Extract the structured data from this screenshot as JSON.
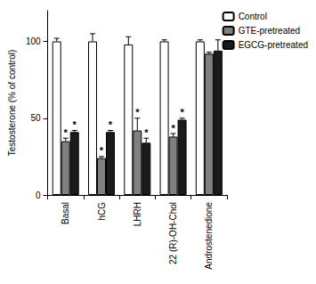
{
  "chart_data": {
    "type": "bar",
    "categories": [
      "Basal",
      "hCG",
      "LHRH",
      "22 (R)-OH-Chol",
      "Androstenedione"
    ],
    "ylabel": "Testosterone (% of control)",
    "ylim": [
      0,
      120
    ],
    "yticks": [
      0,
      50,
      100
    ],
    "grid": false,
    "legend": "upper right",
    "series": [
      {
        "name": "Control",
        "color": "#ffffff",
        "values": [
          100,
          100,
          98,
          100,
          100
        ],
        "errors": [
          2,
          5,
          5,
          1,
          1
        ]
      },
      {
        "name": "GTE-pretreated",
        "color": "#808080",
        "values": [
          35,
          24,
          42,
          38,
          92
        ],
        "errors": [
          2,
          1,
          8,
          2,
          1
        ],
        "annotations": [
          "*",
          "*",
          "*",
          "*",
          null
        ]
      },
      {
        "name": "EGCG-pretreated",
        "color": "#1a1a1a",
        "values": [
          41,
          41,
          34,
          49,
          94
        ],
        "errors": [
          1,
          1,
          3,
          1,
          7
        ],
        "annotations": [
          "*",
          "*",
          "*",
          "*",
          null
        ]
      }
    ]
  }
}
